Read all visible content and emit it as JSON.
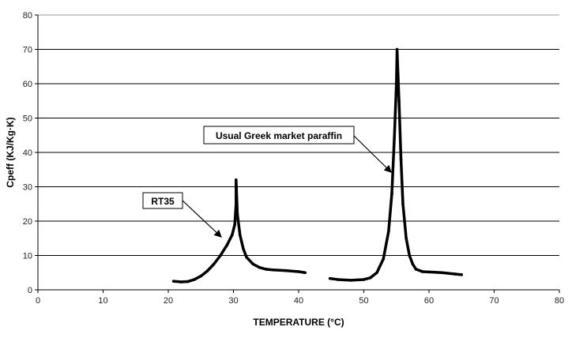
{
  "chart_data": {
    "type": "scatter",
    "xlabel": "TEMPERATURE (°C)",
    "ylabel": "Cpeff (KJ/Kg·K)",
    "xlim": [
      0,
      80
    ],
    "ylim": [
      0,
      80
    ],
    "xticks": [
      0,
      10,
      20,
      30,
      40,
      50,
      60,
      70,
      80
    ],
    "yticks": [
      0,
      10,
      20,
      30,
      40,
      50,
      60,
      70,
      80
    ],
    "grid": "horizontal",
    "series": [
      {
        "name": "RT35",
        "color": "#000000",
        "points": [
          [
            20.8,
            2.5
          ],
          [
            22,
            2.3
          ],
          [
            23,
            2.4
          ],
          [
            24,
            3
          ],
          [
            25,
            4
          ],
          [
            26,
            5.5
          ],
          [
            27,
            7.5
          ],
          [
            28,
            10
          ],
          [
            29,
            13
          ],
          [
            29.8,
            16
          ],
          [
            30.2,
            19
          ],
          [
            30.4,
            25
          ],
          [
            30.4,
            32
          ],
          [
            30.6,
            22
          ],
          [
            31,
            16
          ],
          [
            31.5,
            12
          ],
          [
            32,
            9.5
          ],
          [
            33,
            7.5
          ],
          [
            34,
            6.5
          ],
          [
            35,
            6
          ],
          [
            36,
            5.8
          ],
          [
            38,
            5.6
          ],
          [
            40,
            5.3
          ],
          [
            41,
            5
          ]
        ]
      },
      {
        "name": "Usual Greek market paraffin",
        "color": "#000000",
        "points": [
          [
            44.8,
            3.3
          ],
          [
            46,
            3
          ],
          [
            48,
            2.8
          ],
          [
            50,
            3
          ],
          [
            51,
            3.5
          ],
          [
            52,
            5
          ],
          [
            53,
            9
          ],
          [
            53.8,
            17
          ],
          [
            54.3,
            28
          ],
          [
            54.7,
            45
          ],
          [
            55,
            60
          ],
          [
            55.1,
            70
          ],
          [
            55.4,
            55
          ],
          [
            55.7,
            38
          ],
          [
            56,
            25
          ],
          [
            56.5,
            15
          ],
          [
            57,
            10
          ],
          [
            57.5,
            7.5
          ],
          [
            58,
            6
          ],
          [
            59,
            5.3
          ],
          [
            60,
            5.2
          ],
          [
            62,
            5
          ],
          [
            64,
            4.6
          ],
          [
            65,
            4.4
          ]
        ]
      }
    ],
    "annotations": [
      {
        "text": "RT35",
        "target": [
          29,
          15
        ]
      },
      {
        "text": "Usual Greek market paraffin",
        "target": [
          54.3,
          34
        ]
      }
    ]
  }
}
